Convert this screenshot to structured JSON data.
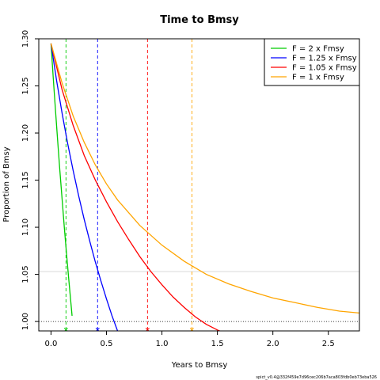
{
  "chart_data": {
    "type": "line",
    "title": "Time to Bmsy",
    "xlabel": "Years to Bmsy",
    "ylabel": "Proportion of Bmsy",
    "xlim": [
      -0.11,
      2.78
    ],
    "ylim": [
      0.99,
      1.3
    ],
    "x_ticks": [
      0.0,
      0.5,
      1.0,
      1.5,
      2.0,
      2.5
    ],
    "x_tick_labels": [
      "0.0",
      "0.5",
      "1.0",
      "1.5",
      "2.0",
      "2.5"
    ],
    "y_ticks": [
      1.0,
      1.05,
      1.1,
      1.15,
      1.2,
      1.25,
      1.3
    ],
    "y_tick_labels": [
      "1.00",
      "1.05",
      "1.10",
      "1.15",
      "1.20",
      "1.25",
      "1.30"
    ],
    "legend_position": "top-right",
    "reference_lines": {
      "horizontal_dotted": 1.0,
      "horizontal_gray": 1.053
    },
    "series": [
      {
        "name": "F = 2 x Fmsy",
        "color": "#00cc00",
        "x": [
          0.0,
          0.02,
          0.04,
          0.06,
          0.08,
          0.1,
          0.12,
          0.14,
          0.16,
          0.18,
          0.19
        ],
        "y": [
          1.295,
          1.259,
          1.225,
          1.192,
          1.16,
          1.13,
          1.1,
          1.072,
          1.045,
          1.019,
          1.006
        ],
        "marker_x": 0.135
      },
      {
        "name": "F = 1.25 x Fmsy",
        "color": "#0000ff",
        "x": [
          0.0,
          0.05,
          0.1,
          0.15,
          0.2,
          0.25,
          0.3,
          0.35,
          0.4,
          0.45,
          0.5,
          0.55,
          0.6,
          0.62
        ],
        "y": [
          1.295,
          1.256,
          1.221,
          1.189,
          1.16,
          1.133,
          1.108,
          1.085,
          1.063,
          1.043,
          1.024,
          1.006,
          0.99,
          0.984
        ],
        "marker_x": 0.42
      },
      {
        "name": "F = 1.05 x Fmsy",
        "color": "#ff0000",
        "x": [
          0.0,
          0.1,
          0.2,
          0.3,
          0.4,
          0.5,
          0.6,
          0.7,
          0.8,
          0.9,
          1.0,
          1.1,
          1.2,
          1.3,
          1.4,
          1.5,
          1.6,
          1.7
        ],
        "y": [
          1.295,
          1.246,
          1.208,
          1.176,
          1.15,
          1.127,
          1.106,
          1.087,
          1.069,
          1.053,
          1.039,
          1.026,
          1.015,
          1.005,
          0.997,
          0.991,
          0.986,
          0.982
        ],
        "marker_x": 0.87
      },
      {
        "name": "F = 1 x Fmsy",
        "color": "#ffa500",
        "x": [
          0.0,
          0.1,
          0.2,
          0.3,
          0.4,
          0.5,
          0.6,
          0.8,
          1.0,
          1.2,
          1.4,
          1.6,
          1.8,
          2.0,
          2.2,
          2.4,
          2.6,
          2.78
        ],
        "y": [
          1.295,
          1.253,
          1.218,
          1.19,
          1.166,
          1.146,
          1.129,
          1.102,
          1.081,
          1.064,
          1.05,
          1.04,
          1.032,
          1.025,
          1.02,
          1.015,
          1.011,
          1.009
        ],
        "marker_x": 1.27
      }
    ]
  },
  "footer": {
    "version_text": "spict_v0.4@332f459e7d96cec206b7aca803fdb0eb73eba526"
  }
}
